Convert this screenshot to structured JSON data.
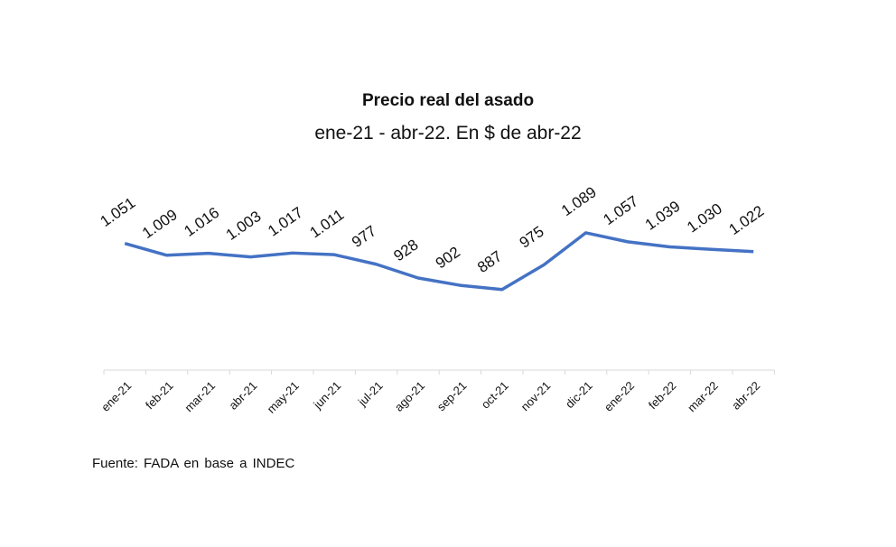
{
  "chart_data": {
    "type": "line",
    "title": "Precio real del asado",
    "subtitle": "ene-21 - abr-22. En $ de abr-22",
    "categories": [
      "ene-21",
      "feb-21",
      "mar-21",
      "abr-21",
      "may-21",
      "jun-21",
      "jul-21",
      "ago-21",
      "sep-21",
      "oct-21",
      "nov-21",
      "dic-21",
      "ene-22",
      "feb-22",
      "mar-22",
      "abr-22"
    ],
    "series": [
      {
        "values": [
          1051,
          1009,
          1016,
          1003,
          1017,
          1011,
          977,
          928,
          902,
          887,
          975,
          1089,
          1057,
          1039,
          1030,
          1022
        ]
      }
    ],
    "data_labels": [
      "1.051",
      "1.009",
      "1.016",
      "1.003",
      "1.017",
      "1.011",
      "977",
      "928",
      "902",
      "887",
      "975",
      "1.089",
      "1.057",
      "1.039",
      "1.030",
      "1.022"
    ],
    "line_color": "#4472C4",
    "grid": false,
    "source": "Fuente: FADA en base a INDEC"
  }
}
